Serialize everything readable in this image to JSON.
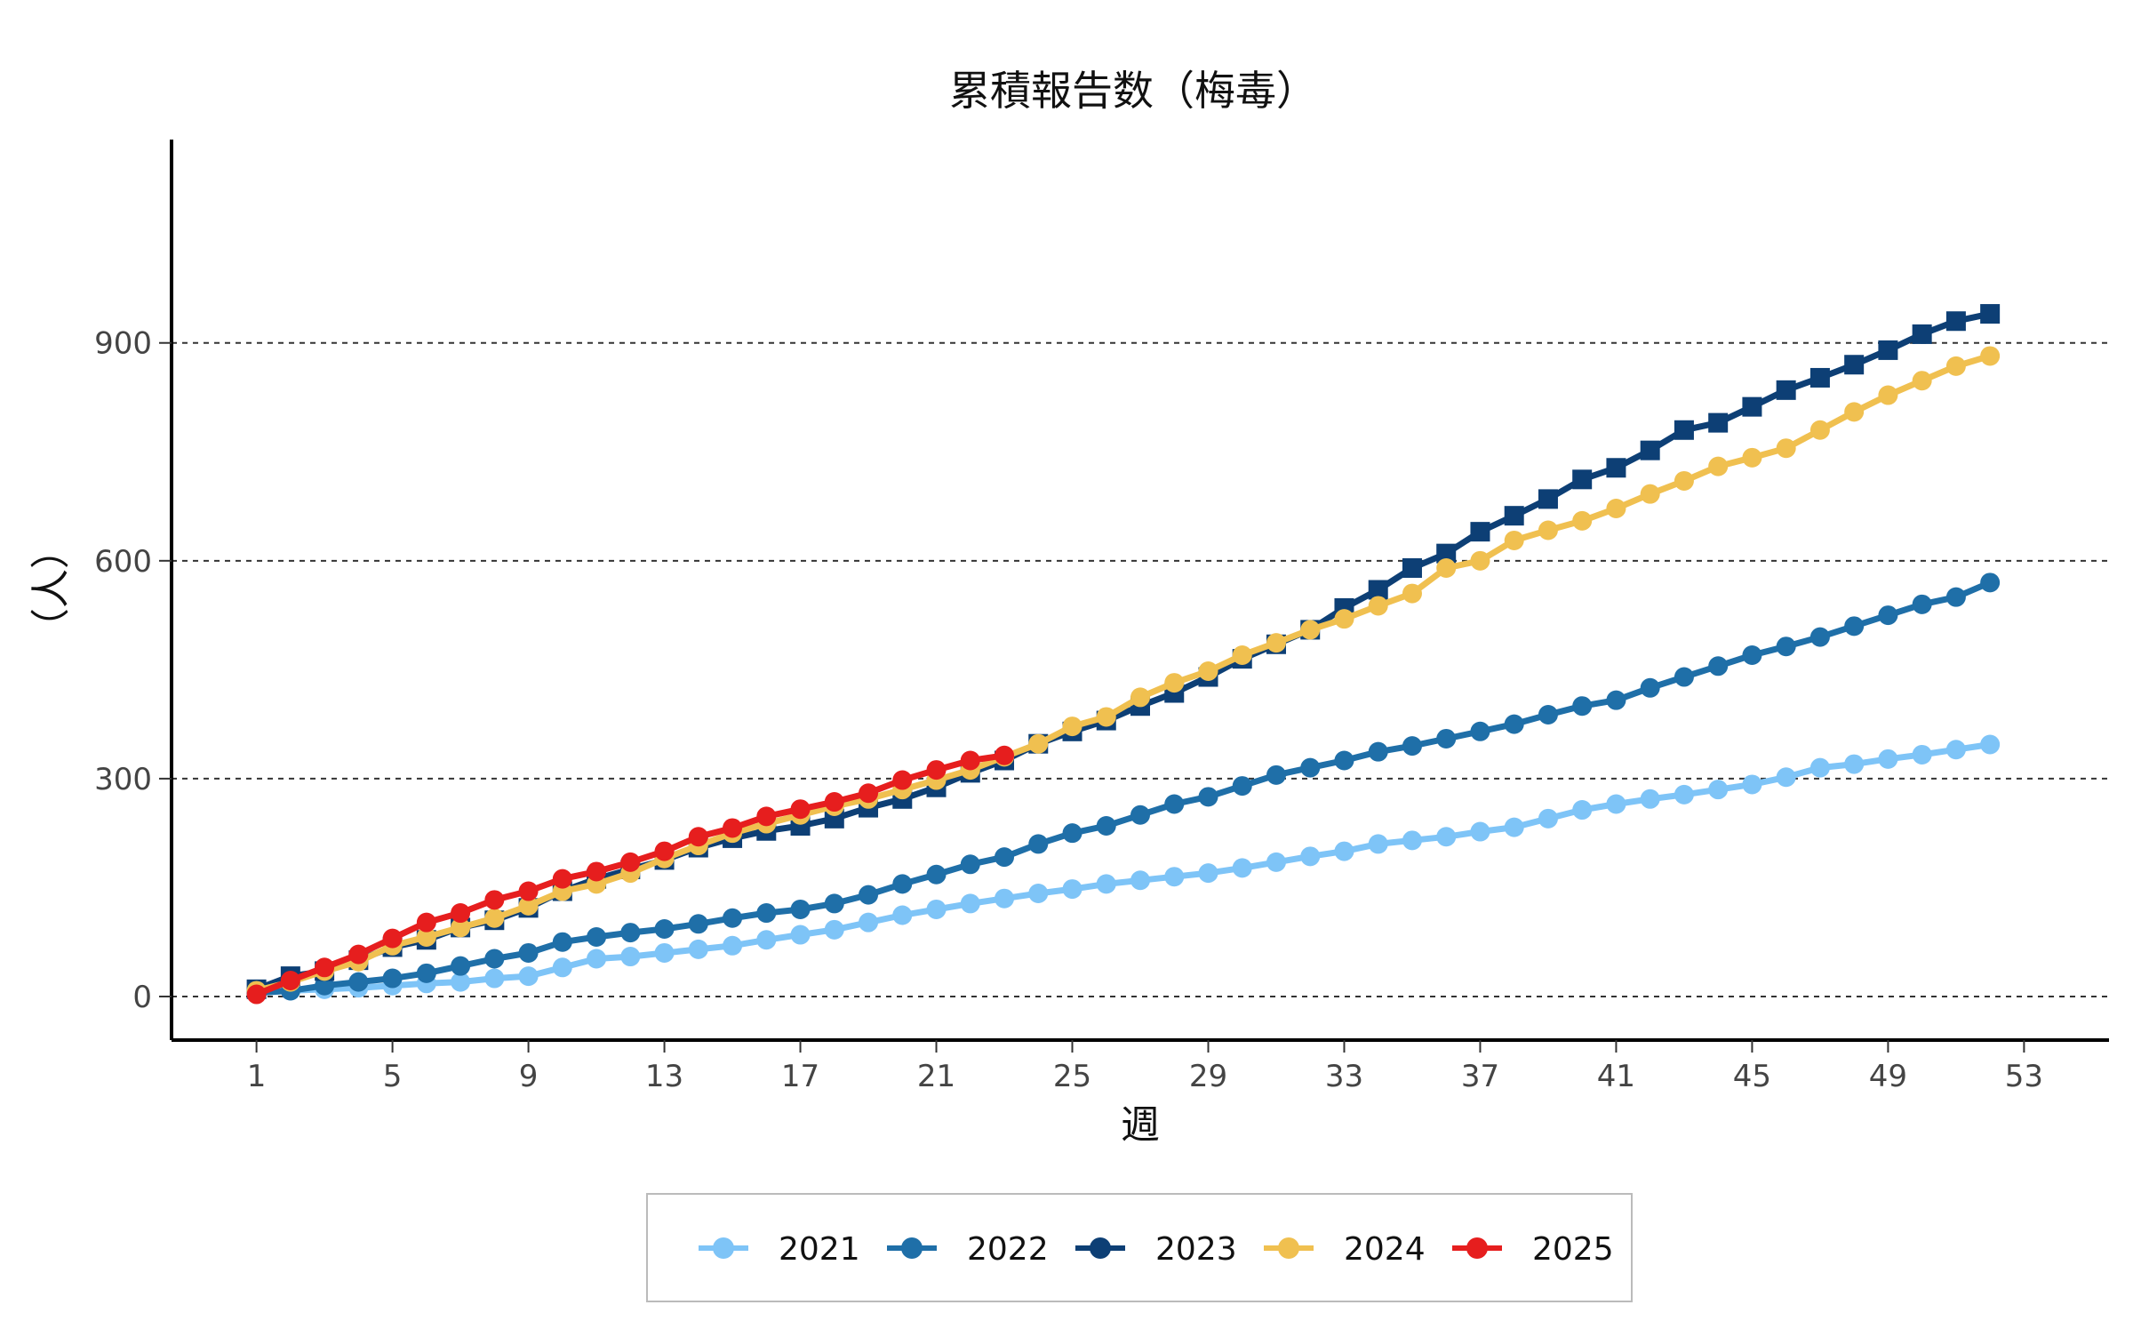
{
  "chart_data": {
    "type": "line",
    "title": "累積報告数（梅毒）",
    "xlabel": "週",
    "ylabel": "（人）",
    "x_ticks": [
      "1",
      "5",
      "9",
      "13",
      "17",
      "21",
      "25",
      "29",
      "33",
      "37",
      "41",
      "45",
      "49",
      "53"
    ],
    "y_ticks": [
      "0",
      "300",
      "600",
      "900"
    ],
    "xlim": [
      -1.5,
      55.5
    ],
    "ylim": [
      -60,
      1180
    ],
    "grid": "horizontal dashed",
    "legend_position": "bottom",
    "series": [
      {
        "name": "2021",
        "color": "#7ec4f7",
        "marker": "circle",
        "values": [
          5,
          8,
          10,
          12,
          15,
          18,
          20,
          25,
          28,
          40,
          52,
          55,
          60,
          65,
          70,
          78,
          85,
          92,
          102,
          112,
          120,
          128,
          135,
          142,
          148,
          155,
          160,
          165,
          170,
          177,
          185,
          193,
          200,
          210,
          215,
          220,
          227,
          233,
          245,
          257,
          265,
          272,
          278,
          285,
          292,
          302,
          315,
          320,
          327,
          333,
          340,
          347
        ]
      },
      {
        "name": "2022",
        "color": "#1f6fa8",
        "marker": "circle",
        "values": [
          5,
          8,
          15,
          20,
          25,
          32,
          42,
          52,
          60,
          75,
          82,
          88,
          93,
          100,
          108,
          115,
          120,
          128,
          140,
          155,
          168,
          182,
          192,
          210,
          225,
          235,
          250,
          265,
          275,
          290,
          305,
          315,
          325,
          337,
          345,
          355,
          365,
          375,
          388,
          400,
          408,
          425,
          440,
          455,
          470,
          482,
          495,
          510,
          525,
          540,
          550,
          570
        ]
      },
      {
        "name": "2023",
        "color": "#0d3f75",
        "marker": "square",
        "values": [
          10,
          28,
          35,
          50,
          68,
          78,
          95,
          105,
          122,
          145,
          162,
          175,
          188,
          205,
          218,
          228,
          235,
          245,
          260,
          272,
          288,
          308,
          325,
          348,
          365,
          380,
          400,
          418,
          440,
          465,
          485,
          505,
          535,
          560,
          590,
          610,
          640,
          662,
          685,
          712,
          728,
          752,
          780,
          790,
          812,
          835,
          852,
          870,
          890,
          912,
          930,
          940
        ]
      },
      {
        "name": "2024",
        "color": "#f0c050",
        "marker": "circle",
        "values": [
          8,
          20,
          35,
          48,
          70,
          82,
          95,
          108,
          125,
          145,
          155,
          170,
          190,
          208,
          225,
          238,
          250,
          262,
          272,
          285,
          298,
          312,
          330,
          348,
          372,
          385,
          412,
          432,
          448,
          470,
          487,
          505,
          520,
          538,
          555,
          590,
          600,
          628,
          642,
          655,
          672,
          692,
          710,
          730,
          742,
          755,
          780,
          805,
          828,
          848,
          868,
          882
        ]
      },
      {
        "name": "2025",
        "color": "#e61e1e",
        "marker": "circle",
        "values": [
          3,
          22,
          40,
          58,
          80,
          102,
          115,
          133,
          145,
          162,
          172,
          185,
          200,
          220,
          232,
          248,
          258,
          268,
          280,
          298,
          312,
          325,
          332
        ]
      }
    ]
  }
}
